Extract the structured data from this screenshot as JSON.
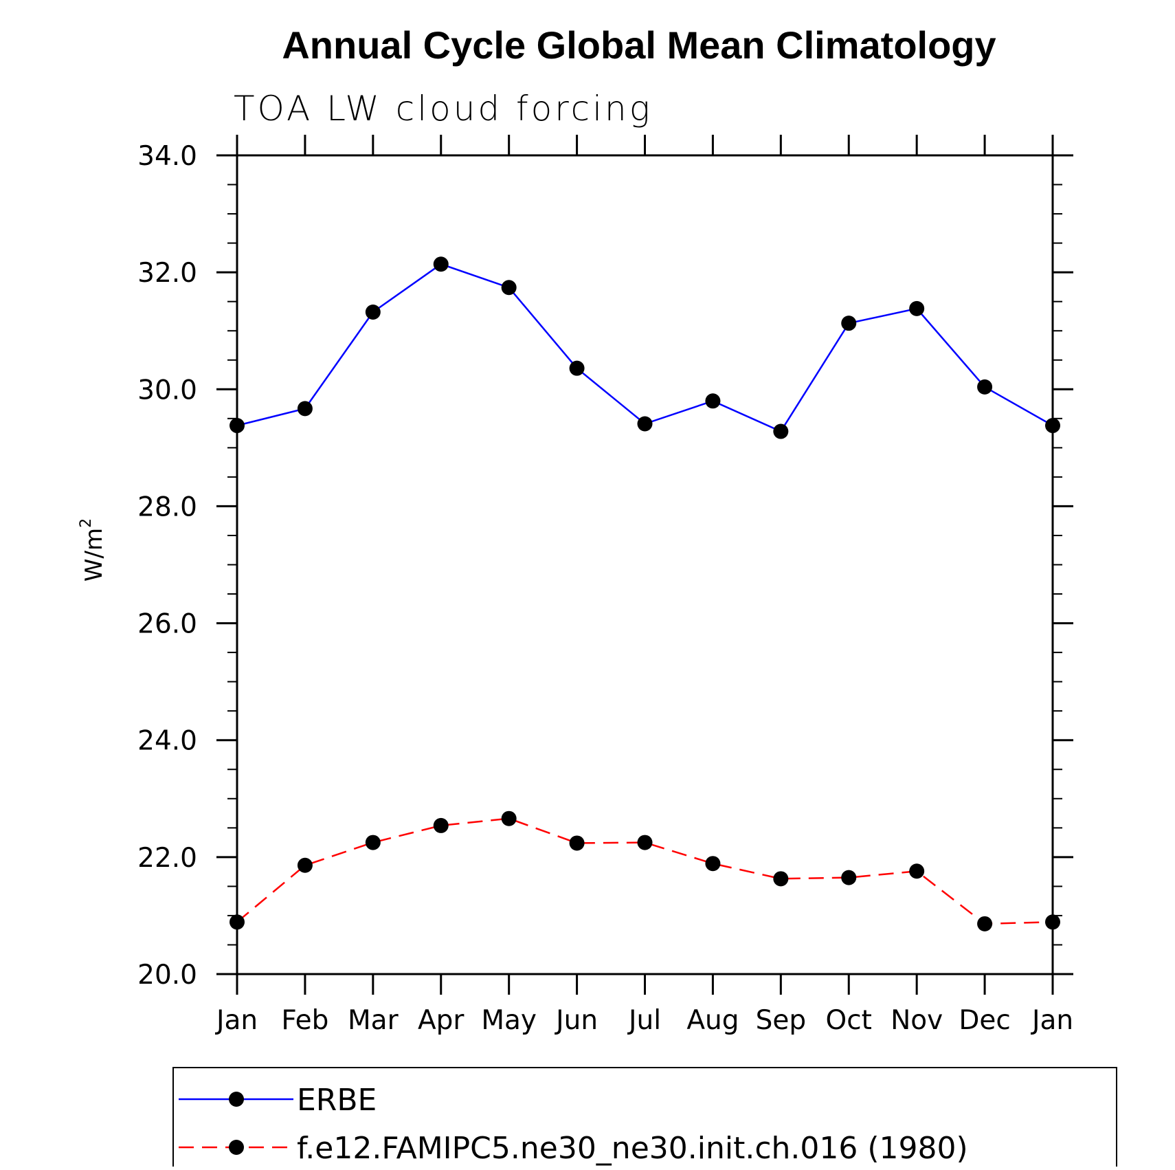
{
  "chart_data": {
    "type": "line",
    "title": "Annual Cycle Global Mean Climatology",
    "subtitle": "TOA LW cloud forcing",
    "ylabel": "W/m",
    "ylabel_superscript": "2",
    "ylim": [
      20.0,
      34.0
    ],
    "yticks": [
      20.0,
      22.0,
      24.0,
      26.0,
      28.0,
      30.0,
      32.0,
      34.0
    ],
    "ytick_labels": [
      "20.0",
      "22.0",
      "24.0",
      "26.0",
      "28.0",
      "30.0",
      "32.0",
      "34.0"
    ],
    "yminor_step": 0.5,
    "categories": [
      "Jan",
      "Feb",
      "Mar",
      "Apr",
      "May",
      "Jun",
      "Jul",
      "Aug",
      "Sep",
      "Oct",
      "Nov",
      "Dec",
      "Jan"
    ],
    "series": [
      {
        "name": "ERBE",
        "color": "#0000ff",
        "dash": "solid",
        "marker": "filled-circle",
        "values": [
          29.38,
          29.67,
          31.32,
          32.14,
          31.74,
          30.36,
          29.41,
          29.8,
          29.28,
          31.13,
          31.38,
          30.04,
          29.38
        ]
      },
      {
        "name": "f.e12.FAMIPC5.ne30_ne30.init.ch.016 (1980)",
        "color": "#ff0000",
        "dash": "dashed",
        "marker": "filled-circle",
        "values": [
          20.89,
          21.86,
          22.25,
          22.54,
          22.66,
          22.24,
          22.25,
          21.89,
          21.63,
          21.65,
          21.76,
          20.86,
          20.89
        ]
      }
    ],
    "legend_position": "bottom"
  },
  "colors": {
    "axis": "#000000",
    "background": "#ffffff"
  }
}
